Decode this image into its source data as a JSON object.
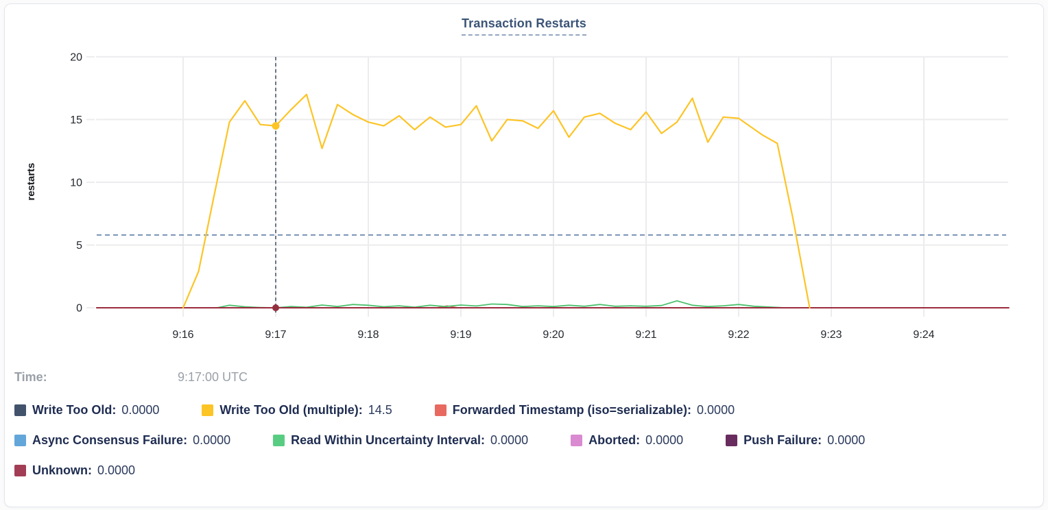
{
  "chart_data": {
    "type": "line",
    "title": "Transaction Restarts",
    "xlabel": "",
    "ylabel": "restarts",
    "ylim": [
      0,
      20
    ],
    "y_ticks": [
      0,
      5,
      10,
      15,
      20
    ],
    "x_ticks": [
      "9:16",
      "9:17",
      "9:18",
      "9:19",
      "9:20",
      "9:21",
      "9:22",
      "9:23",
      "9:24"
    ],
    "x_domain_seconds_after_9_15": [
      4,
      595
    ],
    "grid": true,
    "avg_dashed_line_value": 5.8,
    "crosshair": {
      "time_seconds": 120,
      "time_label": "9:17:00 UTC",
      "hovered_values": [
        {
          "series": "Write Too Old (multiple)",
          "value": 14.5
        },
        {
          "series": "Unknown",
          "value": 0.0
        }
      ]
    },
    "highlighted_points": [
      {
        "series": "Write Too Old (multiple)",
        "t": 120,
        "value": 14.5,
        "color": "#fdc426",
        "radius": 5.5
      },
      {
        "series": "Unknown",
        "t": 120,
        "value": 0,
        "color": "#93303f",
        "radius": 5
      }
    ],
    "series": [
      {
        "name": "Write Too Old",
        "color": "#42526b",
        "width": 1.6,
        "points": [
          [
            4,
            0
          ],
          [
            595,
            0
          ]
        ]
      },
      {
        "name": "Async Consensus Failure",
        "color": "#63a6da",
        "width": 1.6,
        "points": [
          [
            4,
            0
          ],
          [
            595,
            0
          ]
        ]
      },
      {
        "name": "Aborted",
        "color": "#d98ad0",
        "width": 1.6,
        "points": [
          [
            4,
            0
          ],
          [
            595,
            0
          ]
        ]
      },
      {
        "name": "Push Failure",
        "color": "#692c5e",
        "width": 1.6,
        "points": [
          [
            4,
            0
          ],
          [
            595,
            0
          ]
        ]
      },
      {
        "name": "Forwarded Timestamp (iso=serializable)",
        "color": "#e8695f",
        "width": 1.6,
        "points": [
          [
            4,
            0
          ],
          [
            224,
            0
          ],
          [
            231,
            0.16
          ],
          [
            238,
            0
          ],
          [
            595,
            0
          ]
        ]
      },
      {
        "name": "Read Within Uncertainty Interval",
        "color": "#4cc16e",
        "width": 1.8,
        "points": [
          [
            82,
            0
          ],
          [
            90,
            0.2
          ],
          [
            100,
            0.08
          ],
          [
            110,
            0.02
          ],
          [
            120,
            0
          ],
          [
            130,
            0.1
          ],
          [
            140,
            0.04
          ],
          [
            150,
            0.22
          ],
          [
            160,
            0.1
          ],
          [
            170,
            0.26
          ],
          [
            180,
            0.2
          ],
          [
            190,
            0.08
          ],
          [
            200,
            0.16
          ],
          [
            210,
            0.05
          ],
          [
            220,
            0.2
          ],
          [
            230,
            0.1
          ],
          [
            240,
            0.22
          ],
          [
            250,
            0.14
          ],
          [
            260,
            0.3
          ],
          [
            270,
            0.26
          ],
          [
            280,
            0.1
          ],
          [
            290,
            0.16
          ],
          [
            300,
            0.1
          ],
          [
            310,
            0.2
          ],
          [
            320,
            0.12
          ],
          [
            330,
            0.26
          ],
          [
            340,
            0.12
          ],
          [
            350,
            0.16
          ],
          [
            360,
            0.12
          ],
          [
            370,
            0.18
          ],
          [
            380,
            0.55
          ],
          [
            390,
            0.2
          ],
          [
            400,
            0.1
          ],
          [
            410,
            0.16
          ],
          [
            420,
            0.26
          ],
          [
            430,
            0.12
          ],
          [
            440,
            0.06
          ],
          [
            450,
            0
          ],
          [
            457,
            0
          ]
        ]
      },
      {
        "name": "Unknown",
        "color": "#9b2b3d",
        "width": 2,
        "points": [
          [
            4,
            0
          ],
          [
            595,
            0
          ]
        ]
      },
      {
        "name": "Write Too Old (multiple)",
        "color": "#fdc426",
        "width": 2.2,
        "points": [
          [
            60,
            0
          ],
          [
            70,
            2.9
          ],
          [
            80,
            8.9
          ],
          [
            90,
            14.8
          ],
          [
            100,
            16.5
          ],
          [
            110,
            14.6
          ],
          [
            120,
            14.5
          ],
          [
            130,
            15.8
          ],
          [
            140,
            17.0
          ],
          [
            150,
            12.7
          ],
          [
            160,
            16.2
          ],
          [
            170,
            15.4
          ],
          [
            180,
            14.8
          ],
          [
            190,
            14.5
          ],
          [
            200,
            15.3
          ],
          [
            210,
            14.2
          ],
          [
            220,
            15.2
          ],
          [
            230,
            14.4
          ],
          [
            240,
            14.6
          ],
          [
            250,
            16.1
          ],
          [
            260,
            13.3
          ],
          [
            270,
            15.0
          ],
          [
            280,
            14.9
          ],
          [
            290,
            14.3
          ],
          [
            300,
            15.7
          ],
          [
            310,
            13.6
          ],
          [
            320,
            15.2
          ],
          [
            330,
            15.5
          ],
          [
            340,
            14.7
          ],
          [
            350,
            14.2
          ],
          [
            360,
            15.6
          ],
          [
            370,
            13.9
          ],
          [
            380,
            14.8
          ],
          [
            390,
            16.7
          ],
          [
            400,
            13.2
          ],
          [
            410,
            15.2
          ],
          [
            420,
            15.1
          ],
          [
            435,
            13.8
          ],
          [
            445,
            13.1
          ],
          [
            455,
            7.2
          ],
          [
            466,
            0
          ]
        ]
      }
    ],
    "colors": {
      "gridline": "#ececee",
      "crosshair": "#3f4f66",
      "avg_line": "#5d7ea6",
      "tick_text": "#23272d",
      "title_text": "#3b5477"
    }
  },
  "time_readout": {
    "label": "Time:",
    "value": "9:17:00 UTC"
  },
  "legend": {
    "rows": [
      [
        {
          "label": "Write Too Old:",
          "value": "0.0000",
          "color": "#42526b"
        },
        {
          "label": "Write Too Old (multiple):",
          "value": "14.5",
          "color": "#fdc426"
        },
        {
          "label": "Forwarded Timestamp (iso=serializable):",
          "value": "0.0000",
          "color": "#e8695f"
        }
      ],
      [
        {
          "label": "Async Consensus Failure:",
          "value": "0.0000",
          "color": "#63a6da"
        },
        {
          "label": "Read Within Uncertainty Interval:",
          "value": "0.0000",
          "color": "#58cd82"
        },
        {
          "label": "Aborted:",
          "value": "0.0000",
          "color": "#d98ad0"
        },
        {
          "label": "Push Failure:",
          "value": "0.0000",
          "color": "#692c5e"
        }
      ],
      [
        {
          "label": "Unknown:",
          "value": "0.0000",
          "color": "#a23d55"
        }
      ]
    ]
  }
}
